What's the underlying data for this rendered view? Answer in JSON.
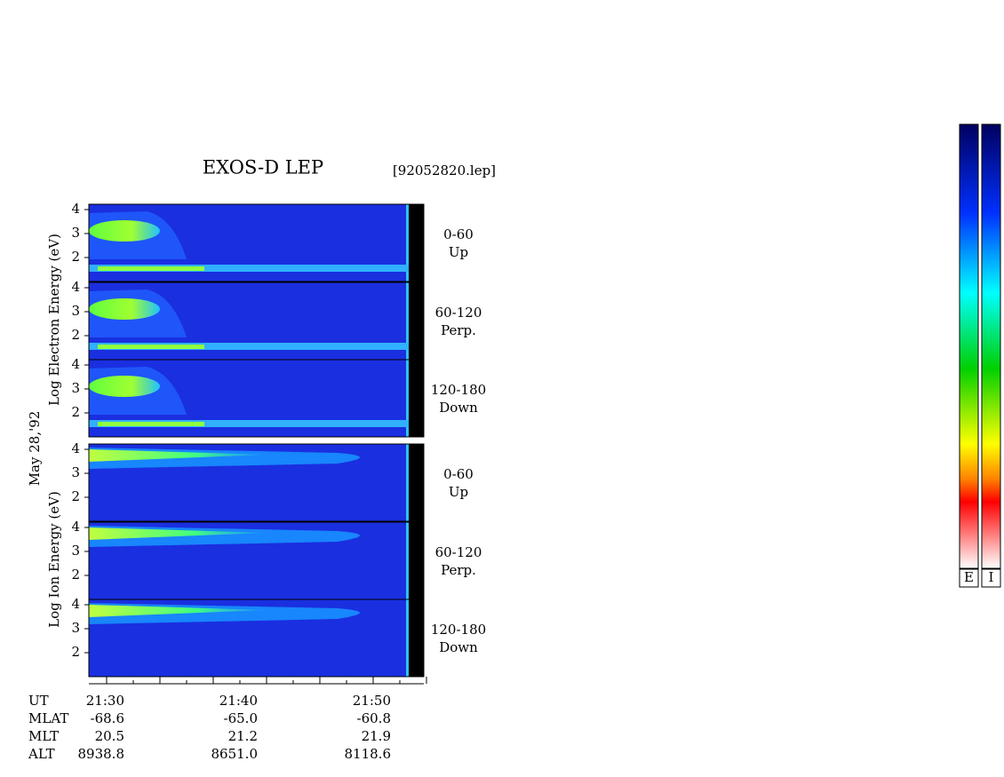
{
  "title": "EXOS-D LEP",
  "file": "[92052820.lep]",
  "date": "May 28,'92",
  "electron_axis_label": "Log Electron Energy (eV)",
  "ion_axis_label": "Log Ion Energy (eV)",
  "panels": [
    {
      "angle": "0-60",
      "direction": "Up",
      "yticks": [
        "4",
        "3",
        "2"
      ]
    },
    {
      "angle": "60-120",
      "direction": "Perp.",
      "yticks": [
        "4",
        "3",
        "2"
      ]
    },
    {
      "angle": "120-180",
      "direction": "Down",
      "yticks": [
        "4",
        "3",
        "2"
      ]
    },
    {
      "angle": "0-60",
      "direction": "Up",
      "yticks": [
        "4",
        "3",
        "2"
      ]
    },
    {
      "angle": "60-120",
      "direction": "Perp.",
      "yticks": [
        "4",
        "3",
        "2"
      ]
    },
    {
      "angle": "120-180",
      "direction": "Down",
      "yticks": [
        "4",
        "3",
        "2"
      ]
    }
  ],
  "time_axis": {
    "rows": [
      {
        "name": "UT",
        "values": [
          "21:30",
          "21:40",
          "21:50"
        ]
      },
      {
        "name": "MLAT",
        "values": [
          "-68.6",
          "-65.0",
          "-60.8"
        ]
      },
      {
        "name": "MLT",
        "values": [
          "20.5",
          "21.2",
          "21.9"
        ]
      },
      {
        "name": "ALT",
        "values": [
          "8938.8",
          "8651.0",
          "8118.6"
        ]
      }
    ]
  },
  "colorbars": [
    "E",
    "I"
  ]
}
